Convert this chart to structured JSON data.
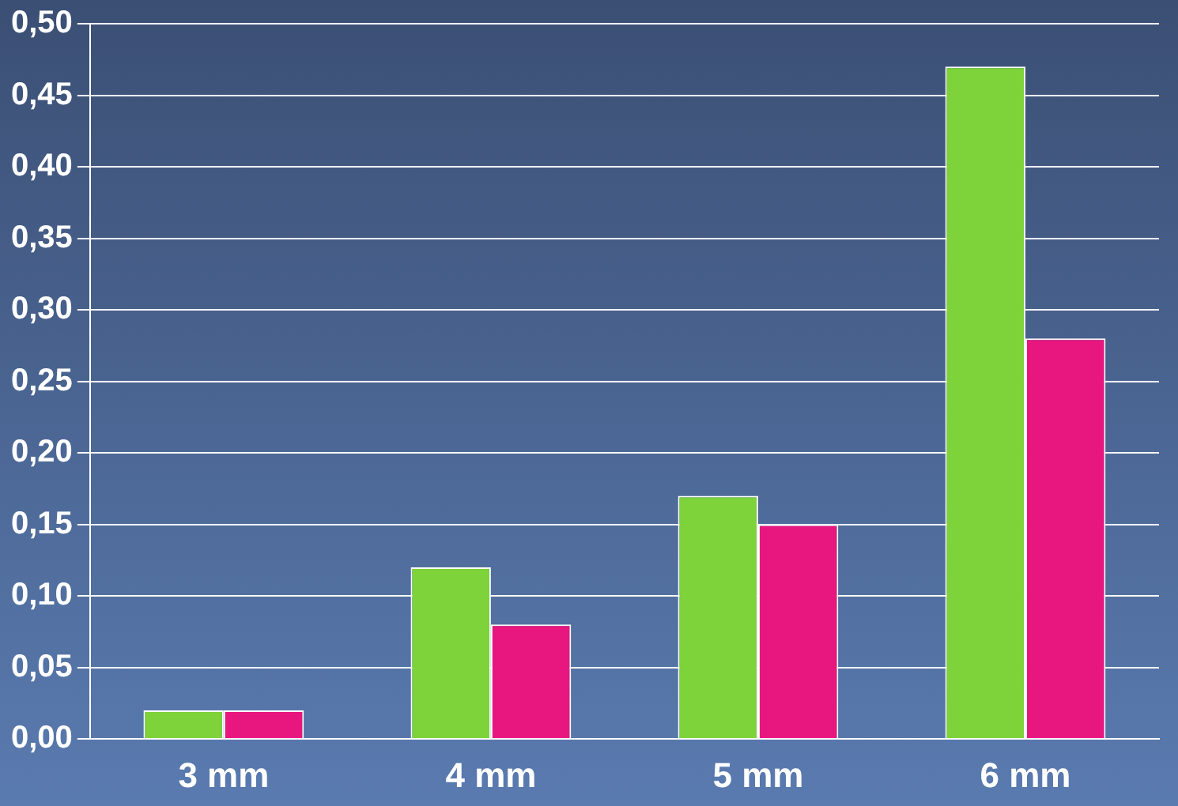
{
  "chart_data": {
    "type": "bar",
    "categories": [
      "3 mm",
      "4 mm",
      "5 mm",
      "6 mm"
    ],
    "series": [
      {
        "color": "#7ed23a",
        "values": [
          0.02,
          0.12,
          0.17,
          0.47
        ]
      },
      {
        "color": "#e8177f",
        "values": [
          0.02,
          0.08,
          0.15,
          0.28
        ]
      }
    ],
    "ylim": [
      0,
      0.5
    ],
    "yticks": [
      {
        "value": 0,
        "label": "0,00"
      },
      {
        "value": 0.05,
        "label": "0,05"
      },
      {
        "value": 0.1,
        "label": "0,10"
      },
      {
        "value": 0.15,
        "label": "0,15"
      },
      {
        "value": 0.2,
        "label": "0,20"
      },
      {
        "value": 0.25,
        "label": "0,25"
      },
      {
        "value": 0.3,
        "label": "0,30"
      },
      {
        "value": 0.35,
        "label": "0,35"
      },
      {
        "value": 0.4,
        "label": "0,40"
      },
      {
        "value": 0.45,
        "label": "0,45"
      },
      {
        "value": 0.5,
        "label": "0,50"
      }
    ],
    "grid": "y",
    "legend": false
  }
}
